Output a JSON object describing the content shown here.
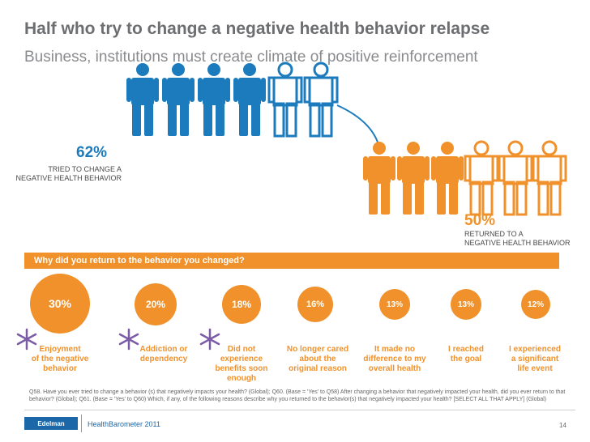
{
  "title": "Half who try to change a negative health behavior relapse",
  "subtitle": "Business, institutions must create climate of positive reinforcement",
  "stat_left": {
    "value": "62%",
    "label_line1": "TRIED TO CHANGE A",
    "label_line2": "NEGATIVE HEALTH BEHAVIOR"
  },
  "stat_right": {
    "value": "50%",
    "label_line1": "RETURNED TO A",
    "label_line2": "NEGATIVE HEALTH BEHAVIOR"
  },
  "question": "Why did you return to the behavior you changed?",
  "reasons": [
    {
      "value": "30%",
      "line1": "Enjoyment",
      "line2": "of the negative",
      "line3": "behavior",
      "line4": ""
    },
    {
      "value": "20%",
      "line1": "Addiction or",
      "line2": "dependency",
      "line3": "",
      "line4": ""
    },
    {
      "value": "18%",
      "line1": "Did not",
      "line2": "experience",
      "line3": "benefits soon",
      "line4": "enough"
    },
    {
      "value": "16%",
      "line1": "No longer cared",
      "line2": "about the",
      "line3": "original reason",
      "line4": ""
    },
    {
      "value": "13%",
      "line1": "It made no",
      "line2": "difference to my",
      "line3": "overall health",
      "line4": ""
    },
    {
      "value": "13%",
      "line1": "I reached",
      "line2": "the goal",
      "line3": "",
      "line4": ""
    },
    {
      "value": "12%",
      "line1": "I experienced",
      "line2": "a significant",
      "line3": "life event",
      "line4": ""
    }
  ],
  "footnote": "Q58. Have you ever tried to change a behavior (s) that negatively impacts your health? (Global); Q60. (Base = 'Yes' to Q58) After changing a behavior that negatively impacted your health, did you ever return to that behavior? (Global); Q61. (Base = 'Yes' to Q60) Which, if any, of the following reasons describe why you returned to the behavior(s) that negatively impacted your health? [SELECT ALL THAT APPLY] (Global)",
  "footer": {
    "logo": "Edelman",
    "brand": "HealthBarometer 2011",
    "page": "14"
  },
  "colors": {
    "blue": "#1b7bbd",
    "orange": "#f0912b",
    "purple": "#7b5ba6",
    "gray_text": "#6d6e71"
  },
  "icons": {
    "person": "person-icon",
    "asterisk": "asterisk-icon",
    "arrow": "curved-arrow-icon"
  }
}
